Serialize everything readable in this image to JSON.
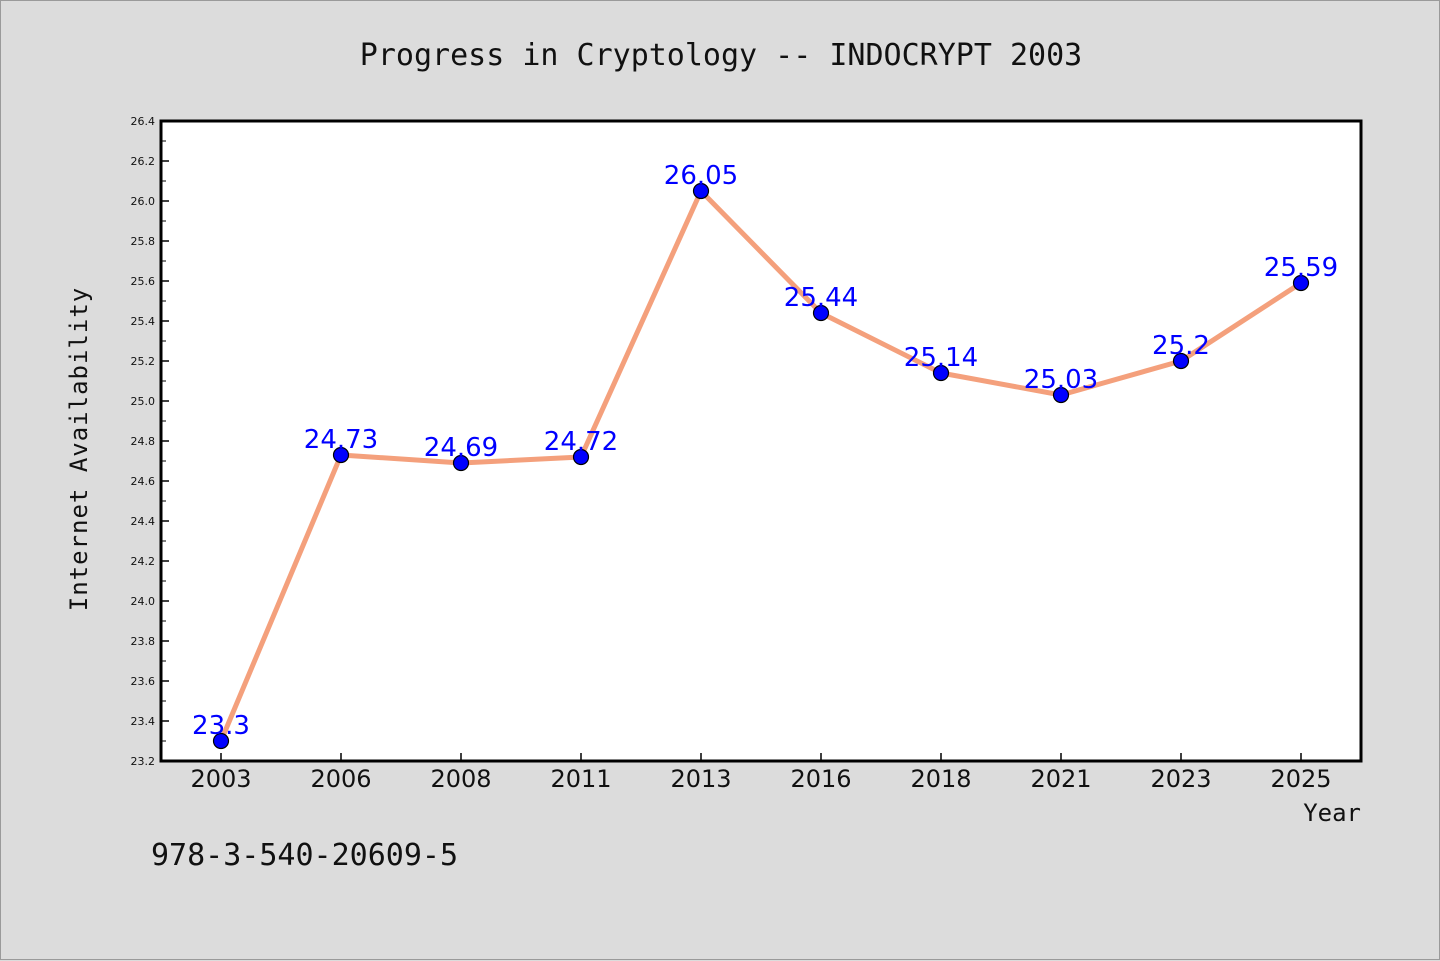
{
  "chart_data": {
    "type": "line",
    "title": "Progress in Cryptology -- INDOCRYPT 2003",
    "xlabel": "Year",
    "ylabel": "Internet Availability",
    "categories": [
      "2003",
      "2006",
      "2008",
      "2011",
      "2013",
      "2016",
      "2018",
      "2021",
      "2023",
      "2025"
    ],
    "series": [
      {
        "values": [
          23.3,
          24.73,
          24.69,
          24.72,
          26.05,
          25.44,
          25.14,
          25.03,
          25.2,
          25.59
        ],
        "labels": [
          "23.3",
          "24.73",
          "24.69",
          "24.72",
          "26.05",
          "25.44",
          "25.14",
          "25.03",
          "25.2",
          "25.59"
        ]
      }
    ],
    "ylim": [
      23.2,
      26.4
    ],
    "yticks": [
      "23.2",
      "23.4",
      "23.6",
      "23.8",
      "24.0",
      "24.2",
      "24.4",
      "24.6",
      "24.8",
      "25.0",
      "25.2",
      "25.4",
      "25.6",
      "25.8",
      "26.0",
      "26.2",
      "26.4"
    ],
    "grid": false,
    "legend": "none",
    "colors": {
      "line": "#f4a07c",
      "marker": "#0000ff",
      "data_label": "#0000ff",
      "plot_background": "#ffffff",
      "page_background": "#dcdcdc"
    }
  },
  "footer": {
    "isbn": "978-3-540-20609-5"
  }
}
